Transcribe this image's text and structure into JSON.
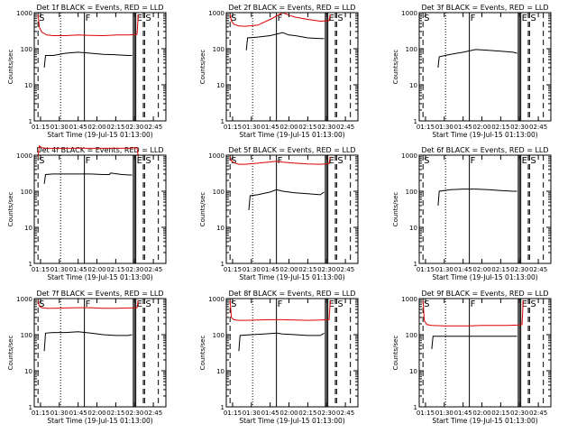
{
  "figure": {
    "colors": {
      "events": "#000000",
      "lld": "#dd0000",
      "axes": "#000000",
      "background": "#ffffff"
    },
    "common": {
      "type": "line",
      "ylabel": "Counts/sec",
      "yscale": "log",
      "ylim": [
        1,
        1000
      ],
      "y_ticks": [
        1,
        10,
        100,
        1000
      ],
      "y_tick_labels": [
        "1",
        "10",
        "100",
        "1000"
      ],
      "xlim": [
        "01:10",
        "02:55"
      ],
      "x_ticks": [
        "01:15",
        "01:30",
        "01:45",
        "02:00",
        "02:15",
        "02:30",
        "02:45"
      ],
      "xlabel": "Start Time (19-Jul-15 01:13:00)",
      "markers": [
        {
          "label": "S",
          "time": "01:13",
          "style": "dashed"
        },
        {
          "label": "",
          "time": "01:31",
          "style": "dotted"
        },
        {
          "label": "F",
          "time": "01:50",
          "style": "solid"
        },
        {
          "label": "",
          "time": "02:29",
          "style": "solid"
        },
        {
          "label": "",
          "time": "02:30",
          "style": "solid"
        },
        {
          "label": "E",
          "time": "02:31",
          "style": "solid"
        },
        {
          "label": "",
          "time": "02:37",
          "style": "dashed"
        },
        {
          "label": "S",
          "time": "02:38",
          "style": "dashed"
        },
        {
          "label": "",
          "time": "02:49",
          "style": "dashed"
        }
      ]
    }
  },
  "chart_data": [
    {
      "type": "line",
      "title": "Det 1f BLACK = Events, RED = LLD",
      "series": [
        {
          "name": "Events",
          "x": [
            "01:18",
            "01:19",
            "01:25",
            "01:35",
            "01:45",
            "01:55",
            "02:05",
            "02:15",
            "02:25",
            "02:28"
          ],
          "y": [
            30,
            65,
            65,
            75,
            80,
            75,
            70,
            68,
            65,
            65
          ]
        },
        {
          "name": "LLD",
          "x": [
            "01:13",
            "01:14",
            "01:16",
            "01:20",
            "01:25",
            "01:35",
            "01:45",
            "01:55",
            "02:05",
            "02:15",
            "02:25",
            "02:32",
            "02:33"
          ],
          "y": [
            900,
            400,
            290,
            240,
            230,
            230,
            240,
            235,
            230,
            240,
            240,
            250,
            900
          ]
        }
      ]
    },
    {
      "type": "line",
      "title": "Det 2f BLACK = Events, RED = LLD",
      "series": [
        {
          "name": "Events",
          "x": [
            "01:26",
            "01:27",
            "01:35",
            "01:45",
            "01:55",
            "02:00",
            "02:05",
            "02:15",
            "02:25",
            "02:28"
          ],
          "y": [
            90,
            200,
            210,
            230,
            280,
            240,
            230,
            200,
            190,
            190
          ]
        },
        {
          "name": "LLD",
          "x": [
            "01:13",
            "01:14",
            "01:16",
            "01:20",
            "01:25",
            "01:35",
            "01:45",
            "01:55",
            "02:00",
            "02:05",
            "02:15",
            "02:25",
            "02:32",
            "02:33"
          ],
          "y": [
            900,
            600,
            480,
            430,
            420,
            450,
            650,
            1000,
            850,
            750,
            650,
            580,
            600,
            900
          ]
        }
      ]
    },
    {
      "type": "line",
      "title": "Det 3f BLACK = Events, RED = LLD",
      "series": [
        {
          "name": "Events",
          "x": [
            "01:25",
            "01:26",
            "01:35",
            "01:45",
            "01:55",
            "02:05",
            "02:15",
            "02:25",
            "02:28"
          ],
          "y": [
            30,
            60,
            70,
            80,
            95,
            90,
            85,
            80,
            75
          ]
        },
        {
          "name": "LLD",
          "x": [],
          "y": []
        }
      ]
    },
    {
      "type": "line",
      "title": "Det 4f BLACK = Events, RED = LLD",
      "series": [
        {
          "name": "Events",
          "x": [
            "01:18",
            "01:19",
            "01:25",
            "01:35",
            "01:45",
            "01:55",
            "02:05",
            "02:10",
            "02:11",
            "02:20",
            "02:28"
          ],
          "y": [
            160,
            290,
            300,
            300,
            300,
            300,
            290,
            290,
            320,
            290,
            280
          ]
        },
        {
          "name": "LLD",
          "x": [
            "01:13",
            "01:14",
            "01:16",
            "01:20",
            "01:25",
            "01:35",
            "01:45",
            "01:55",
            "02:05",
            "02:15",
            "02:25",
            "02:32",
            "02:33"
          ],
          "y": [
            900,
            1800,
            1600,
            1550,
            1550,
            1550,
            1560,
            1550,
            1550,
            1560,
            1550,
            1600,
            900
          ]
        }
      ]
    },
    {
      "type": "line",
      "title": "Det 5f BLACK = Events, RED = LLD",
      "series": [
        {
          "name": "Events",
          "x": [
            "01:28",
            "01:29",
            "01:35",
            "01:45",
            "01:50",
            "01:55",
            "02:05",
            "02:15",
            "02:25",
            "02:28"
          ],
          "y": [
            30,
            75,
            80,
            95,
            110,
            100,
            90,
            85,
            80,
            95
          ]
        },
        {
          "name": "LLD",
          "x": [
            "01:13",
            "01:14",
            "01:16",
            "01:20",
            "01:25",
            "01:35",
            "01:45",
            "01:50",
            "01:55",
            "02:05",
            "02:15",
            "02:25",
            "02:32",
            "02:33"
          ],
          "y": [
            900,
            700,
            620,
            560,
            560,
            600,
            650,
            680,
            640,
            600,
            570,
            560,
            580,
            900
          ]
        }
      ]
    },
    {
      "type": "line",
      "title": "Det 6f BLACK = Events, RED = LLD",
      "series": [
        {
          "name": "Events",
          "x": [
            "01:25",
            "01:26",
            "01:35",
            "01:45",
            "01:55",
            "02:05",
            "02:15",
            "02:25",
            "02:28"
          ],
          "y": [
            40,
            100,
            110,
            115,
            115,
            110,
            105,
            100,
            100
          ]
        },
        {
          "name": "LLD",
          "x": [],
          "y": []
        }
      ]
    },
    {
      "type": "line",
      "title": "Det 7f BLACK = Events, RED = LLD",
      "series": [
        {
          "name": "Events",
          "x": [
            "01:18",
            "01:19",
            "01:25",
            "01:35",
            "01:45",
            "01:55",
            "02:05",
            "02:15",
            "02:25",
            "02:28"
          ],
          "y": [
            35,
            110,
            115,
            115,
            120,
            110,
            100,
            95,
            95,
            100
          ]
        },
        {
          "name": "LLD",
          "x": [
            "01:13",
            "01:14",
            "01:16",
            "01:20",
            "01:25",
            "01:35",
            "01:45",
            "01:55",
            "02:05",
            "02:15",
            "02:25",
            "02:32",
            "02:33"
          ],
          "y": [
            900,
            620,
            560,
            540,
            540,
            550,
            560,
            560,
            540,
            540,
            550,
            560,
            900
          ]
        }
      ]
    },
    {
      "type": "line",
      "title": "Det 8f BLACK = Events, RED = LLD",
      "series": [
        {
          "name": "Events",
          "x": [
            "01:20",
            "01:21",
            "01:30",
            "01:40",
            "01:50",
            "01:55",
            "02:05",
            "02:15",
            "02:25",
            "02:28"
          ],
          "y": [
            35,
            95,
            100,
            105,
            110,
            105,
            100,
            95,
            95,
            110
          ]
        },
        {
          "name": "LLD",
          "x": [
            "01:13",
            "01:14",
            "01:16",
            "01:20",
            "01:25",
            "01:35",
            "01:45",
            "01:55",
            "02:05",
            "02:15",
            "02:25",
            "02:32",
            "02:33"
          ],
          "y": [
            900,
            300,
            260,
            250,
            250,
            255,
            260,
            260,
            255,
            250,
            255,
            260,
            900
          ]
        }
      ]
    },
    {
      "type": "line",
      "title": "Det 9f BLACK = Events, RED = LLD",
      "series": [
        {
          "name": "Events",
          "x": [
            "01:20",
            "01:21",
            "01:30",
            "01:40",
            "01:50",
            "02:00",
            "02:10",
            "02:20",
            "02:28"
          ],
          "y": [
            40,
            90,
            90,
            90,
            90,
            90,
            90,
            90,
            90
          ]
        },
        {
          "name": "LLD",
          "x": [
            "01:13",
            "01:14",
            "01:16",
            "01:20",
            "01:30",
            "01:40",
            "01:50",
            "02:00",
            "02:10",
            "02:20",
            "02:30",
            "02:32",
            "02:33"
          ],
          "y": [
            900,
            250,
            190,
            180,
            175,
            175,
            175,
            180,
            180,
            180,
            185,
            190,
            900
          ]
        }
      ]
    }
  ]
}
